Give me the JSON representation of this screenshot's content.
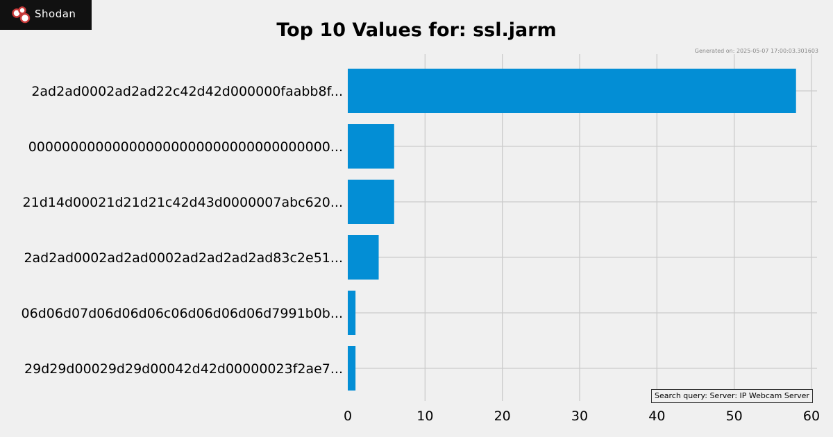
{
  "logo": {
    "text": "Shodan"
  },
  "generated_text": "Generated on: 2025-05-07 17:00:03.301603",
  "search_query_text": "Search query: Server: IP Webcam Server",
  "colors": {
    "bar": "#038ED5",
    "grid": "#cbcbcb",
    "background": "#f0f0f0"
  },
  "chart_data": {
    "type": "bar",
    "orientation": "horizontal",
    "title": "Top 10 Values for: ssl.jarm",
    "xlabel": "",
    "ylabel": "",
    "categories": [
      "2ad2ad0002ad2ad22c42d42d000000faabb8f...",
      "000000000000000000000000000000000000...",
      "21d14d00021d21d21c42d43d0000007abc620...",
      "2ad2ad0002ad2ad0002ad2ad2ad2ad83c2e51...",
      "06d06d07d06d06d06c06d06d06d06d7991b0b...",
      "29d29d00029d29d00042d42d00000023f2ae7..."
    ],
    "values": [
      58,
      6,
      6,
      4,
      1,
      1
    ],
    "xlim": [
      0,
      60
    ],
    "xticks": [
      0,
      10,
      20,
      30,
      40,
      50,
      60
    ],
    "grid": true
  }
}
